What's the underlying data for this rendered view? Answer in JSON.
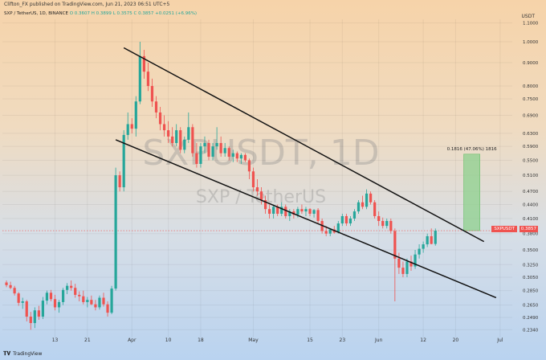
{
  "header": {
    "published_by": "Clifton_FX published on TradingView.com, Jun 21, 2023 06:51 UTC+5",
    "symbol_line": "SXP / TetherUS, 1D, BINANCE",
    "ohlc": {
      "O": "O 0.3607",
      "H": "H 0.3899",
      "L": "L 0.3575",
      "C": "C 0.3857",
      "chg": "+0.0251 (+6.96%)"
    },
    "currency": "USDT"
  },
  "watermark": {
    "ticker": "SXPUSDT, 1D",
    "name": "SXP / TetherUS"
  },
  "footer": {
    "brand": "TradingView"
  },
  "colors": {
    "up": "#26a69a",
    "down": "#ef5350",
    "channel": "#111111",
    "measure_fill": "#8ed08e",
    "price_line": "#ef5350"
  },
  "chart_data": {
    "type": "candlestick",
    "y_scale": "log",
    "ylim": [
      0.225,
      1.12
    ],
    "y_ticks": [
      "1.1000",
      "1.0000",
      "0.9000",
      "0.8000",
      "0.7500",
      "0.6900",
      "0.6300",
      "0.5900",
      "0.5500",
      "0.5100",
      "0.4700",
      "0.4400",
      "0.4100",
      "0.3800",
      "0.3500",
      "0.3250",
      "0.3050",
      "0.2850",
      "0.2650",
      "0.2490",
      "0.2340"
    ],
    "x_ticks": [
      {
        "label": "13",
        "day": 12
      },
      {
        "label": "21",
        "day": 20
      },
      {
        "label": "Apr",
        "day": 31
      },
      {
        "label": "10",
        "day": 40
      },
      {
        "label": "18",
        "day": 48
      },
      {
        "label": "May",
        "day": 61
      },
      {
        "label": "15",
        "day": 75
      },
      {
        "label": "23",
        "day": 83
      },
      {
        "label": "Jun",
        "day": 92
      },
      {
        "label": "12",
        "day": 103
      },
      {
        "label": "20",
        "day": 111
      },
      {
        "label": "Jul",
        "day": 122
      }
    ],
    "x_range": [
      -1,
      125
    ],
    "last_price": "0.3857",
    "last_price_label": "SXPUSDT",
    "measure": {
      "label": "0.1816 (47.06%) 1816",
      "from": 0.3857,
      "to": 0.5673,
      "x_start": 113,
      "x_end": 117
    },
    "channel": [
      {
        "x1": 29,
        "y1": 0.97,
        "x2": 118,
        "y2": 0.365
      },
      {
        "x1": 27,
        "y1": 0.61,
        "x2": 121,
        "y2": 0.275
      }
    ],
    "candles": [
      [
        0.297,
        0.3,
        0.29,
        0.293
      ],
      [
        0.293,
        0.298,
        0.287,
        0.289
      ],
      [
        0.289,
        0.292,
        0.278,
        0.281
      ],
      [
        0.281,
        0.283,
        0.264,
        0.268
      ],
      [
        0.268,
        0.275,
        0.26,
        0.27
      ],
      [
        0.27,
        0.272,
        0.244,
        0.25
      ],
      [
        0.25,
        0.256,
        0.234,
        0.242
      ],
      [
        0.242,
        0.262,
        0.236,
        0.258
      ],
      [
        0.258,
        0.264,
        0.246,
        0.25
      ],
      [
        0.25,
        0.276,
        0.247,
        0.271
      ],
      [
        0.271,
        0.285,
        0.266,
        0.282
      ],
      [
        0.282,
        0.286,
        0.27,
        0.273
      ],
      [
        0.273,
        0.279,
        0.258,
        0.262
      ],
      [
        0.262,
        0.272,
        0.255,
        0.269
      ],
      [
        0.269,
        0.289,
        0.265,
        0.286
      ],
      [
        0.286,
        0.296,
        0.28,
        0.292
      ],
      [
        0.292,
        0.3,
        0.285,
        0.289
      ],
      [
        0.289,
        0.295,
        0.275,
        0.279
      ],
      [
        0.279,
        0.284,
        0.27,
        0.277
      ],
      [
        0.277,
        0.285,
        0.266,
        0.269
      ],
      [
        0.269,
        0.276,
        0.262,
        0.272
      ],
      [
        0.272,
        0.278,
        0.265,
        0.266
      ],
      [
        0.266,
        0.272,
        0.258,
        0.262
      ],
      [
        0.262,
        0.278,
        0.259,
        0.275
      ],
      [
        0.275,
        0.282,
        0.263,
        0.266
      ],
      [
        0.266,
        0.27,
        0.25,
        0.255
      ],
      [
        0.255,
        0.292,
        0.253,
        0.288
      ],
      [
        0.288,
        0.53,
        0.285,
        0.51
      ],
      [
        0.51,
        0.52,
        0.47,
        0.48
      ],
      [
        0.48,
        0.64,
        0.47,
        0.625
      ],
      [
        0.625,
        0.7,
        0.61,
        0.66
      ],
      [
        0.66,
        0.68,
        0.63,
        0.645
      ],
      [
        0.645,
        0.76,
        0.62,
        0.74
      ],
      [
        0.74,
        1.0,
        0.73,
        0.93
      ],
      [
        0.93,
        0.96,
        0.83,
        0.86
      ],
      [
        0.86,
        0.9,
        0.78,
        0.8
      ],
      [
        0.8,
        0.83,
        0.72,
        0.74
      ],
      [
        0.74,
        0.76,
        0.68,
        0.7
      ],
      [
        0.7,
        0.72,
        0.64,
        0.66
      ],
      [
        0.66,
        0.69,
        0.62,
        0.64
      ],
      [
        0.64,
        0.67,
        0.6,
        0.62
      ],
      [
        0.62,
        0.65,
        0.59,
        0.6
      ],
      [
        0.6,
        0.66,
        0.59,
        0.64
      ],
      [
        0.64,
        0.65,
        0.57,
        0.58
      ],
      [
        0.58,
        0.62,
        0.57,
        0.61
      ],
      [
        0.61,
        0.7,
        0.6,
        0.65
      ],
      [
        0.65,
        0.66,
        0.56,
        0.57
      ],
      [
        0.57,
        0.6,
        0.53,
        0.54
      ],
      [
        0.54,
        0.6,
        0.53,
        0.59
      ],
      [
        0.59,
        0.62,
        0.57,
        0.6
      ],
      [
        0.6,
        0.61,
        0.55,
        0.56
      ],
      [
        0.56,
        0.6,
        0.55,
        0.59
      ],
      [
        0.59,
        0.65,
        0.58,
        0.6
      ],
      [
        0.6,
        0.62,
        0.56,
        0.57
      ],
      [
        0.57,
        0.6,
        0.56,
        0.585
      ],
      [
        0.585,
        0.59,
        0.55,
        0.56
      ],
      [
        0.56,
        0.58,
        0.545,
        0.57
      ],
      [
        0.57,
        0.575,
        0.545,
        0.555
      ],
      [
        0.555,
        0.57,
        0.54,
        0.565
      ],
      [
        0.565,
        0.57,
        0.545,
        0.55
      ],
      [
        0.55,
        0.555,
        0.5,
        0.52
      ],
      [
        0.52,
        0.53,
        0.47,
        0.48
      ],
      [
        0.48,
        0.5,
        0.46,
        0.47
      ],
      [
        0.47,
        0.48,
        0.44,
        0.45
      ],
      [
        0.45,
        0.46,
        0.42,
        0.43
      ],
      [
        0.43,
        0.44,
        0.41,
        0.42
      ],
      [
        0.42,
        0.44,
        0.41,
        0.435
      ],
      [
        0.435,
        0.44,
        0.415,
        0.42
      ],
      [
        0.42,
        0.445,
        0.415,
        0.435
      ],
      [
        0.435,
        0.44,
        0.41,
        0.415
      ],
      [
        0.415,
        0.43,
        0.405,
        0.425
      ],
      [
        0.425,
        0.43,
        0.41,
        0.418
      ],
      [
        0.418,
        0.435,
        0.412,
        0.43
      ],
      [
        0.43,
        0.44,
        0.42,
        0.425
      ],
      [
        0.425,
        0.435,
        0.415,
        0.43
      ],
      [
        0.43,
        0.432,
        0.415,
        0.42
      ],
      [
        0.42,
        0.43,
        0.412,
        0.428
      ],
      [
        0.428,
        0.432,
        0.4,
        0.405
      ],
      [
        0.405,
        0.41,
        0.38,
        0.385
      ],
      [
        0.385,
        0.395,
        0.375,
        0.38
      ],
      [
        0.38,
        0.39,
        0.375,
        0.388
      ],
      [
        0.388,
        0.395,
        0.38,
        0.382
      ],
      [
        0.382,
        0.405,
        0.38,
        0.4
      ],
      [
        0.4,
        0.42,
        0.395,
        0.415
      ],
      [
        0.415,
        0.42,
        0.395,
        0.4
      ],
      [
        0.4,
        0.415,
        0.395,
        0.41
      ],
      [
        0.41,
        0.43,
        0.405,
        0.425
      ],
      [
        0.425,
        0.45,
        0.42,
        0.445
      ],
      [
        0.445,
        0.46,
        0.43,
        0.435
      ],
      [
        0.435,
        0.475,
        0.43,
        0.465
      ],
      [
        0.465,
        0.47,
        0.44,
        0.445
      ],
      [
        0.445,
        0.45,
        0.41,
        0.415
      ],
      [
        0.415,
        0.425,
        0.395,
        0.405
      ],
      [
        0.405,
        0.412,
        0.39,
        0.395
      ],
      [
        0.395,
        0.41,
        0.39,
        0.405
      ],
      [
        0.405,
        0.41,
        0.38,
        0.385
      ],
      [
        0.385,
        0.39,
        0.27,
        0.335
      ],
      [
        0.335,
        0.345,
        0.31,
        0.32
      ],
      [
        0.32,
        0.33,
        0.305,
        0.31
      ],
      [
        0.31,
        0.335,
        0.305,
        0.33
      ],
      [
        0.33,
        0.34,
        0.315,
        0.322
      ],
      [
        0.322,
        0.35,
        0.318,
        0.342
      ],
      [
        0.342,
        0.36,
        0.335,
        0.352
      ],
      [
        0.352,
        0.365,
        0.345,
        0.36
      ],
      [
        0.36,
        0.38,
        0.355,
        0.375
      ],
      [
        0.375,
        0.39,
        0.36,
        0.3607
      ],
      [
        0.3607,
        0.3899,
        0.3575,
        0.3857
      ]
    ]
  }
}
